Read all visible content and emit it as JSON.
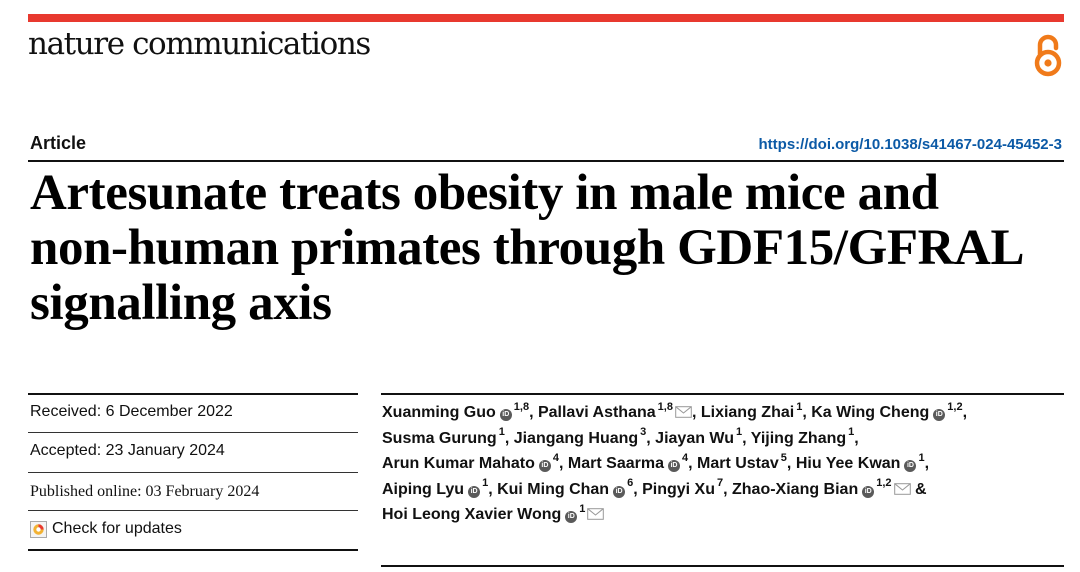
{
  "journal": {
    "name": "nature communications"
  },
  "header": {
    "article_type": "Article",
    "doi": "https://doi.org/10.1038/s41467-024-45452-3"
  },
  "title_lines": [
    "Artesunate treats obesity in male mice and",
    "non-human primates through GDF15/GFRAL",
    "signalling axis"
  ],
  "dates": {
    "received": "Received: 6 December 2022",
    "accepted": "Accepted: 23 January 2024",
    "published": "Published online: 03 February 2024"
  },
  "check_updates": "Check for updates",
  "author_lines": [
    [
      {
        "name": "Xuanming Guo",
        "orcid": true,
        "sup": "1,8",
        "sep": ", "
      },
      {
        "name": "Pallavi Asthana",
        "sup": "1,8",
        "mail": true,
        "sep": ", "
      },
      {
        "name": "Lixiang Zhai",
        "sup": "1",
        "sep": ", "
      },
      {
        "name": "Ka Wing Cheng",
        "orcid": true,
        "sup": "1,2",
        "sep": ","
      }
    ],
    [
      {
        "name": "Susma Gurung",
        "sup": "1",
        "sep": ", "
      },
      {
        "name": "Jiangang Huang",
        "sup": "3",
        "sep": ", "
      },
      {
        "name": "Jiayan Wu",
        "sup": "1",
        "sep": ", "
      },
      {
        "name": "Yijing Zhang",
        "sup": "1",
        "sep": ","
      }
    ],
    [
      {
        "name": "Arun Kumar Mahato",
        "orcid": true,
        "sup": "4",
        "sep": ", "
      },
      {
        "name": "Mart Saarma",
        "orcid": true,
        "sup": "4",
        "sep": ", "
      },
      {
        "name": "Mart Ustav",
        "sup": "5",
        "sep": ", "
      },
      {
        "name": "Hiu Yee Kwan",
        "orcid": true,
        "sup": "1",
        "sep": ","
      }
    ],
    [
      {
        "name": "Aiping Lyu",
        "orcid": true,
        "sup": "1",
        "sep": ", "
      },
      {
        "name": "Kui Ming Chan",
        "orcid": true,
        "sup": "6",
        "sep": ", "
      },
      {
        "name": "Pingyi Xu",
        "sup": "7",
        "sep": ", "
      },
      {
        "name": "Zhao-Xiang Bian",
        "orcid": true,
        "sup": "1,2",
        "mail": true,
        "sep": " &"
      }
    ],
    [
      {
        "name": "Hoi Leong Xavier Wong",
        "orcid": true,
        "sup": "1",
        "mail": true,
        "sep": ""
      }
    ]
  ],
  "colors": {
    "accent": "#e8392f",
    "doi_link": "#0c5aa6",
    "open_access": "#f07a1a",
    "orcid_badge": "#5a5a5a"
  },
  "icons": {
    "open_access": "open-access-icon",
    "orcid": "orcid-icon",
    "mail": "mail-icon",
    "updates": "check-for-updates-icon"
  }
}
